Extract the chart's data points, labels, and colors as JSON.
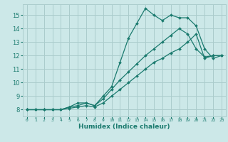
{
  "xlabel": "Humidex (Indice chaleur)",
  "bg_color": "#cce8e8",
  "grid_color": "#aacccc",
  "line_color": "#1a7a6e",
  "xlim": [
    -0.5,
    23.5
  ],
  "ylim": [
    7.5,
    15.8
  ],
  "xticks": [
    0,
    1,
    2,
    3,
    4,
    5,
    6,
    7,
    8,
    9,
    10,
    11,
    12,
    13,
    14,
    15,
    16,
    17,
    18,
    19,
    20,
    21,
    22,
    23
  ],
  "yticks": [
    8,
    9,
    10,
    11,
    12,
    13,
    14,
    15
  ],
  "line1_x": [
    0,
    1,
    2,
    3,
    4,
    5,
    6,
    7,
    8,
    9,
    10,
    11,
    12,
    13,
    14,
    15,
    16,
    17,
    18,
    19,
    20,
    21,
    22,
    23
  ],
  "line1_y": [
    8.0,
    8.0,
    8.0,
    8.0,
    8.0,
    8.2,
    8.5,
    8.5,
    8.3,
    9.0,
    9.7,
    11.5,
    13.3,
    14.4,
    15.5,
    15.0,
    14.6,
    15.0,
    14.8,
    14.8,
    14.2,
    12.5,
    11.8,
    12.0
  ],
  "line2_x": [
    0,
    1,
    2,
    3,
    4,
    5,
    6,
    7,
    8,
    9,
    10,
    11,
    12,
    13,
    14,
    15,
    16,
    17,
    18,
    19,
    20,
    21,
    22,
    23
  ],
  "line2_y": [
    8.0,
    8.0,
    8.0,
    8.0,
    8.0,
    8.2,
    8.3,
    8.5,
    8.3,
    8.8,
    9.5,
    10.2,
    10.8,
    11.4,
    12.0,
    12.5,
    13.0,
    13.5,
    14.0,
    13.6,
    12.5,
    11.9,
    12.0,
    12.0
  ],
  "line3_x": [
    0,
    1,
    2,
    3,
    4,
    5,
    6,
    7,
    8,
    9,
    10,
    11,
    12,
    13,
    14,
    15,
    16,
    17,
    18,
    19,
    20,
    21,
    22,
    23
  ],
  "line3_y": [
    8.0,
    8.0,
    8.0,
    8.0,
    8.0,
    8.1,
    8.2,
    8.3,
    8.2,
    8.5,
    9.0,
    9.5,
    10.0,
    10.5,
    11.0,
    11.5,
    11.8,
    12.2,
    12.5,
    13.0,
    13.6,
    11.8,
    12.0,
    12.0
  ]
}
